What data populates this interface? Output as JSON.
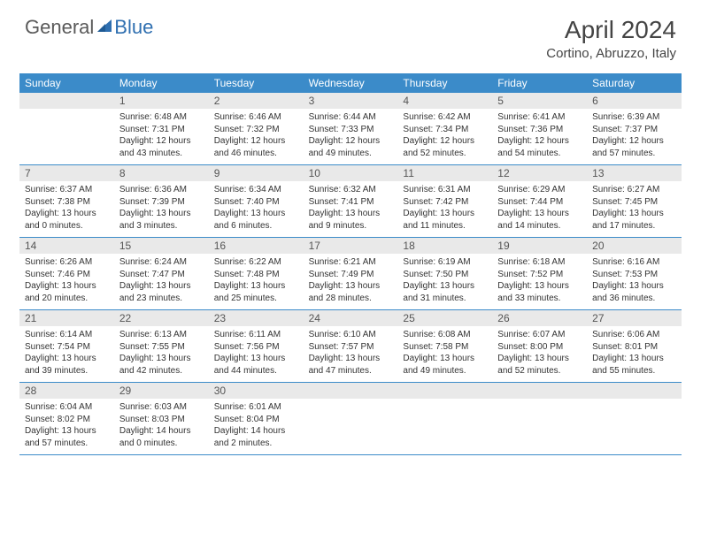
{
  "brand": {
    "part1": "General",
    "part2": "Blue",
    "color1": "#6a6a6a",
    "color2": "#2f6fb0",
    "sail_color": "#2f6fb0"
  },
  "header": {
    "title": "April 2024",
    "subtitle": "Cortino, Abruzzo, Italy"
  },
  "colors": {
    "header_bg": "#3b8bc9",
    "header_text": "#ffffff",
    "daynum_bg": "#e9e9e9",
    "rule": "#3b8bc9"
  },
  "daynames": [
    "Sunday",
    "Monday",
    "Tuesday",
    "Wednesday",
    "Thursday",
    "Friday",
    "Saturday"
  ],
  "layout": {
    "first_weekday_offset": 1,
    "days_in_month": 30,
    "cols": 7
  },
  "days": {
    "1": {
      "sunrise": "6:48 AM",
      "sunset": "7:31 PM",
      "daylight": "12 hours and 43 minutes."
    },
    "2": {
      "sunrise": "6:46 AM",
      "sunset": "7:32 PM",
      "daylight": "12 hours and 46 minutes."
    },
    "3": {
      "sunrise": "6:44 AM",
      "sunset": "7:33 PM",
      "daylight": "12 hours and 49 minutes."
    },
    "4": {
      "sunrise": "6:42 AM",
      "sunset": "7:34 PM",
      "daylight": "12 hours and 52 minutes."
    },
    "5": {
      "sunrise": "6:41 AM",
      "sunset": "7:36 PM",
      "daylight": "12 hours and 54 minutes."
    },
    "6": {
      "sunrise": "6:39 AM",
      "sunset": "7:37 PM",
      "daylight": "12 hours and 57 minutes."
    },
    "7": {
      "sunrise": "6:37 AM",
      "sunset": "7:38 PM",
      "daylight": "13 hours and 0 minutes."
    },
    "8": {
      "sunrise": "6:36 AM",
      "sunset": "7:39 PM",
      "daylight": "13 hours and 3 minutes."
    },
    "9": {
      "sunrise": "6:34 AM",
      "sunset": "7:40 PM",
      "daylight": "13 hours and 6 minutes."
    },
    "10": {
      "sunrise": "6:32 AM",
      "sunset": "7:41 PM",
      "daylight": "13 hours and 9 minutes."
    },
    "11": {
      "sunrise": "6:31 AM",
      "sunset": "7:42 PM",
      "daylight": "13 hours and 11 minutes."
    },
    "12": {
      "sunrise": "6:29 AM",
      "sunset": "7:44 PM",
      "daylight": "13 hours and 14 minutes."
    },
    "13": {
      "sunrise": "6:27 AM",
      "sunset": "7:45 PM",
      "daylight": "13 hours and 17 minutes."
    },
    "14": {
      "sunrise": "6:26 AM",
      "sunset": "7:46 PM",
      "daylight": "13 hours and 20 minutes."
    },
    "15": {
      "sunrise": "6:24 AM",
      "sunset": "7:47 PM",
      "daylight": "13 hours and 23 minutes."
    },
    "16": {
      "sunrise": "6:22 AM",
      "sunset": "7:48 PM",
      "daylight": "13 hours and 25 minutes."
    },
    "17": {
      "sunrise": "6:21 AM",
      "sunset": "7:49 PM",
      "daylight": "13 hours and 28 minutes."
    },
    "18": {
      "sunrise": "6:19 AM",
      "sunset": "7:50 PM",
      "daylight": "13 hours and 31 minutes."
    },
    "19": {
      "sunrise": "6:18 AM",
      "sunset": "7:52 PM",
      "daylight": "13 hours and 33 minutes."
    },
    "20": {
      "sunrise": "6:16 AM",
      "sunset": "7:53 PM",
      "daylight": "13 hours and 36 minutes."
    },
    "21": {
      "sunrise": "6:14 AM",
      "sunset": "7:54 PM",
      "daylight": "13 hours and 39 minutes."
    },
    "22": {
      "sunrise": "6:13 AM",
      "sunset": "7:55 PM",
      "daylight": "13 hours and 42 minutes."
    },
    "23": {
      "sunrise": "6:11 AM",
      "sunset": "7:56 PM",
      "daylight": "13 hours and 44 minutes."
    },
    "24": {
      "sunrise": "6:10 AM",
      "sunset": "7:57 PM",
      "daylight": "13 hours and 47 minutes."
    },
    "25": {
      "sunrise": "6:08 AM",
      "sunset": "7:58 PM",
      "daylight": "13 hours and 49 minutes."
    },
    "26": {
      "sunrise": "6:07 AM",
      "sunset": "8:00 PM",
      "daylight": "13 hours and 52 minutes."
    },
    "27": {
      "sunrise": "6:06 AM",
      "sunset": "8:01 PM",
      "daylight": "13 hours and 55 minutes."
    },
    "28": {
      "sunrise": "6:04 AM",
      "sunset": "8:02 PM",
      "daylight": "13 hours and 57 minutes."
    },
    "29": {
      "sunrise": "6:03 AM",
      "sunset": "8:03 PM",
      "daylight": "14 hours and 0 minutes."
    },
    "30": {
      "sunrise": "6:01 AM",
      "sunset": "8:04 PM",
      "daylight": "14 hours and 2 minutes."
    }
  },
  "labels": {
    "sunrise": "Sunrise:",
    "sunset": "Sunset:",
    "daylight": "Daylight:"
  }
}
